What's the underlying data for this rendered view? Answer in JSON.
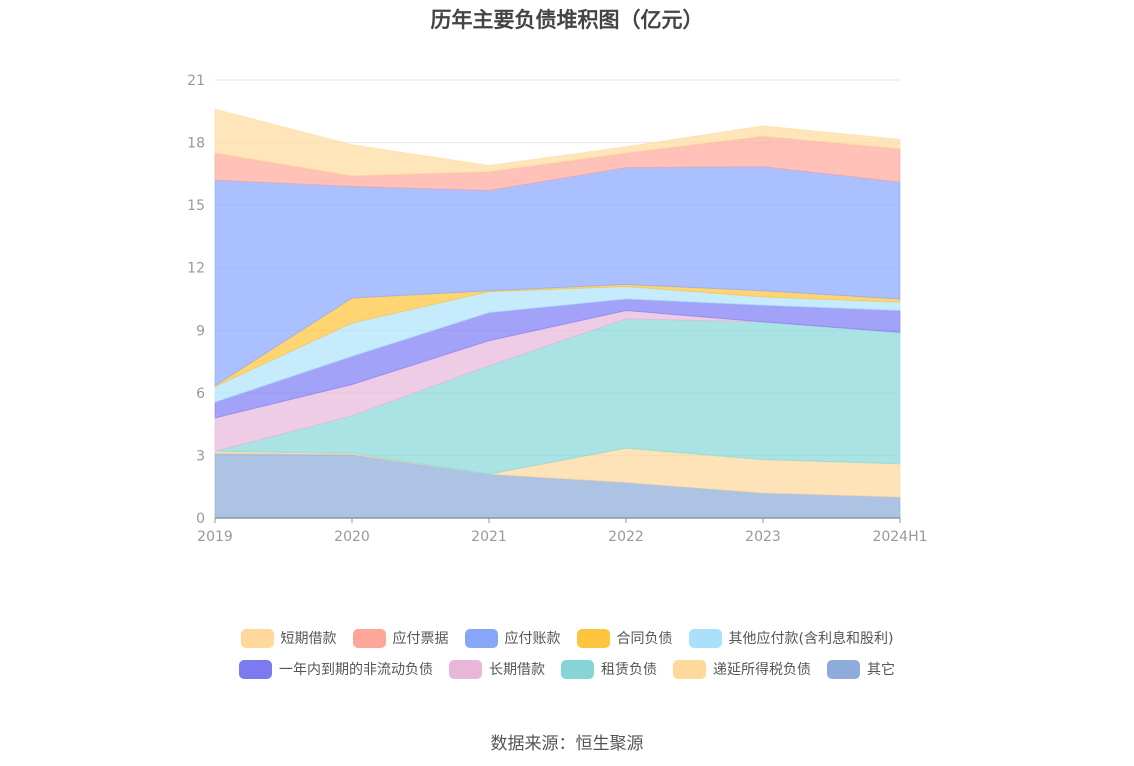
{
  "chart_data": {
    "type": "area",
    "stacked": true,
    "title": "历年主要负债堆积图（亿元）",
    "categories": [
      "2019",
      "2020",
      "2021",
      "2022",
      "2023",
      "2024H1"
    ],
    "y_ticks": [
      "0",
      "3",
      "6",
      "9",
      "12",
      "15",
      "18",
      "21"
    ],
    "ylim": [
      0,
      21
    ],
    "grid": true,
    "legend_position": "bottom",
    "series": [
      {
        "name": "其它",
        "color": "#8eacd9",
        "values": [
          3.1,
          3.05,
          2.1,
          1.7,
          1.2,
          1.0
        ]
      },
      {
        "name": "递延所得税负债",
        "color": "#ffd89c",
        "values": [
          0.1,
          0.05,
          0.0,
          1.65,
          1.6,
          1.6
        ]
      },
      {
        "name": "租赁负债",
        "color": "#88d8d8",
        "values": [
          0.0,
          1.8,
          5.2,
          6.2,
          6.6,
          6.3
        ]
      },
      {
        "name": "长期借款",
        "color": "#e9b8dc",
        "values": [
          1.6,
          1.5,
          1.2,
          0.4,
          0.0,
          0.0
        ]
      },
      {
        "name": "一年内到期的非流动负债",
        "color": "#7e7ef5",
        "values": [
          0.75,
          1.35,
          1.35,
          0.55,
          0.8,
          1.05
        ]
      },
      {
        "name": "其他应付款(含利息和股利)",
        "color": "#aee3fb",
        "values": [
          0.75,
          1.6,
          1.0,
          0.6,
          0.4,
          0.4
        ]
      },
      {
        "name": "合同负债",
        "color": "#ffc43d",
        "values": [
          0.05,
          1.2,
          0.05,
          0.1,
          0.3,
          0.15
        ]
      },
      {
        "name": "应付账款",
        "color": "#8aa8ff",
        "values": [
          9.85,
          5.35,
          4.8,
          5.6,
          5.95,
          5.6
        ]
      },
      {
        "name": "应付票据",
        "color": "#ffa99c",
        "values": [
          1.3,
          0.5,
          0.9,
          0.7,
          1.45,
          1.6
        ]
      },
      {
        "name": "短期借款",
        "color": "#ffdc9f",
        "values": [
          2.1,
          1.5,
          0.3,
          0.3,
          0.5,
          0.45
        ]
      }
    ]
  },
  "legend": [
    [
      {
        "label": "短期借款",
        "color": "#ffd89c"
      },
      {
        "label": "应付票据",
        "color": "#ffa69a"
      },
      {
        "label": "应付账款",
        "color": "#87a6f8"
      },
      {
        "label": "合同负债",
        "color": "#ffc43d"
      },
      {
        "label": "其他应付款(含利息和股利)",
        "color": "#aae0fa"
      }
    ],
    [
      {
        "label": "一年内到期的非流动负债",
        "color": "#7b7bef"
      },
      {
        "label": "长期借款",
        "color": "#e7b6d9"
      },
      {
        "label": "租赁负债",
        "color": "#86d4d6"
      },
      {
        "label": "递延所得税负债",
        "color": "#ffd89c"
      },
      {
        "label": "其它",
        "color": "#8eacd9"
      }
    ]
  ],
  "source": "数据来源：恒生聚源"
}
